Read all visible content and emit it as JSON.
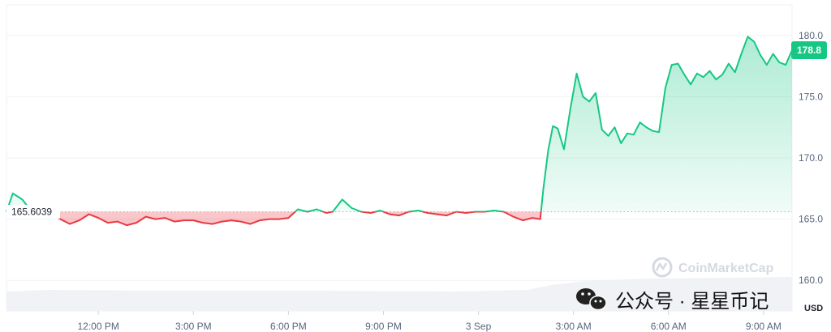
{
  "chart_data": {
    "type": "line",
    "title": "",
    "xlabel": "",
    "ylabel": "",
    "currency": "USD",
    "ylim": [
      157.5,
      182.5
    ],
    "y_ticks": [
      {
        "value": 160,
        "label": "160.0"
      },
      {
        "value": 165,
        "label": "165.0"
      },
      {
        "value": 170,
        "label": "170.0"
      },
      {
        "value": 175,
        "label": "175.0"
      },
      {
        "value": 180,
        "label": "180.0"
      }
    ],
    "x_ticks": [
      {
        "hour": 12,
        "label": "12:00 PM"
      },
      {
        "hour": 15,
        "label": "3:00 PM"
      },
      {
        "hour": 18,
        "label": "6:00 PM"
      },
      {
        "hour": 21,
        "label": "9:00 PM"
      },
      {
        "hour": 24,
        "label": "3 Sep"
      },
      {
        "hour": 27,
        "label": "3:00 AM"
      },
      {
        "hour": 30,
        "label": "6:00 AM"
      },
      {
        "hour": 33,
        "label": "9:00 AM"
      }
    ],
    "baseline": {
      "value": 165.6039,
      "label": "165.6039"
    },
    "current_price": {
      "value": 178.8,
      "label": "178.8"
    },
    "colors": {
      "up": "#16c784",
      "down": "#ea3943",
      "grid": "#eff2f5",
      "badge": "#16c784"
    },
    "grid": true,
    "series": [
      {
        "x": [
          9.1,
          9.3,
          9.6,
          9.9,
          10.2,
          10.5,
          10.8,
          11.1,
          11.4,
          11.7,
          12.0,
          12.3,
          12.6,
          12.9,
          13.2,
          13.5,
          13.8,
          14.1,
          14.4,
          14.7,
          15.0,
          15.3,
          15.6,
          15.9,
          16.2,
          16.5,
          16.8,
          17.1,
          17.4,
          17.7,
          18.0,
          18.3,
          18.6,
          18.9,
          19.2,
          19.4,
          19.7,
          20.0,
          20.3,
          20.6,
          20.9,
          21.2,
          21.5,
          21.8,
          22.1,
          22.4,
          22.7,
          23.0,
          23.3,
          23.6,
          23.9,
          24.2,
          24.5,
          24.8,
          25.1,
          25.4,
          25.7,
          25.95,
          26.05,
          26.2,
          26.35,
          26.5,
          26.7,
          26.9,
          27.1,
          27.3,
          27.5,
          27.7,
          27.9,
          28.1,
          28.3,
          28.5,
          28.7,
          28.9,
          29.1,
          29.3,
          29.5,
          29.7,
          29.9,
          30.1,
          30.3,
          30.5,
          30.7,
          30.9,
          31.1,
          31.3,
          31.5,
          31.7,
          31.9,
          32.1,
          32.3,
          32.5,
          32.7,
          32.9,
          33.1,
          33.3,
          33.5,
          33.7,
          33.9
        ],
        "values": [
          165.6,
          167.1,
          166.6,
          165.6,
          165.2,
          165.4,
          165.0,
          164.6,
          164.9,
          165.4,
          165.1,
          164.7,
          164.8,
          164.5,
          164.7,
          165.2,
          165.0,
          165.1,
          164.8,
          164.9,
          164.9,
          164.7,
          164.6,
          164.8,
          164.9,
          164.8,
          164.6,
          164.9,
          165.0,
          165.0,
          165.1,
          165.8,
          165.6,
          165.8,
          165.5,
          165.6,
          166.6,
          165.9,
          165.6,
          165.5,
          165.7,
          165.4,
          165.3,
          165.6,
          165.7,
          165.5,
          165.4,
          165.3,
          165.6,
          165.5,
          165.6,
          165.6,
          165.7,
          165.6,
          165.2,
          164.9,
          165.1,
          165.0,
          167.5,
          170.6,
          172.6,
          172.4,
          170.7,
          174.0,
          176.9,
          175.0,
          174.6,
          175.3,
          172.3,
          171.8,
          172.5,
          171.2,
          172.0,
          171.9,
          172.9,
          172.5,
          172.2,
          172.1,
          175.7,
          177.6,
          177.7,
          176.8,
          176.0,
          176.9,
          176.6,
          177.1,
          176.4,
          176.8,
          177.7,
          177.0,
          178.5,
          179.9,
          179.5,
          178.4,
          177.6,
          178.5,
          177.8,
          177.6,
          178.8
        ]
      }
    ]
  },
  "watermark": {
    "cmc_text": "CoinMarketCap",
    "wechat_text": "公众号 · 星星币记"
  }
}
